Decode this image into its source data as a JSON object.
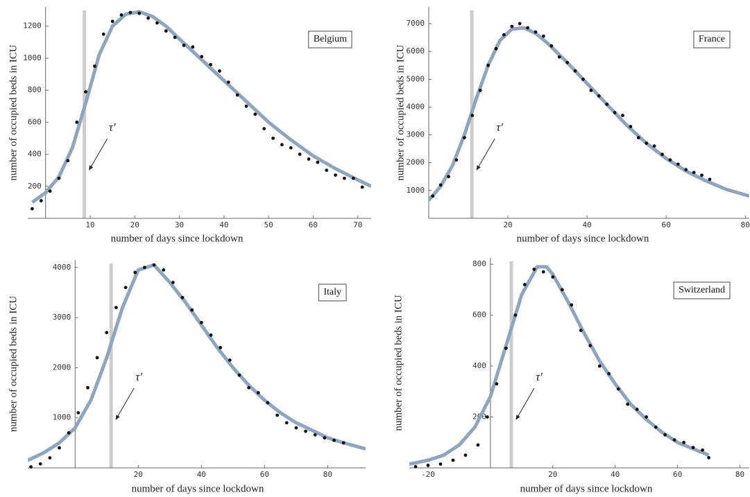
{
  "chart_data": [
    {
      "type": "scatter",
      "label": "Belgium",
      "annotation": "τ′",
      "xlabel": "number of days since lockdown",
      "ylabel": "number of occupied beds in ICU",
      "xlim": [
        -4,
        73
      ],
      "ylim": [
        0,
        1320
      ],
      "xticks": [
        10,
        20,
        30,
        40,
        50,
        60,
        70
      ],
      "yticks": [
        200,
        400,
        600,
        800,
        1000,
        1200
      ],
      "tau_x": 8.7,
      "tau_color": "#cccccc",
      "series": [
        {
          "type": "scatter",
          "color": "#111111",
          "x": [
            -3,
            -1,
            1,
            3,
            5,
            7,
            9,
            11,
            13,
            15,
            17,
            19,
            21,
            23,
            25,
            27,
            29,
            31,
            33,
            35,
            37,
            39,
            41,
            43,
            45,
            47,
            49,
            51,
            53,
            55,
            57,
            59,
            61,
            63,
            65,
            67,
            69,
            71
          ],
          "values": [
            60,
            110,
            170,
            250,
            360,
            600,
            790,
            950,
            1150,
            1230,
            1270,
            1285,
            1280,
            1250,
            1220,
            1170,
            1130,
            1080,
            1070,
            1010,
            960,
            920,
            850,
            770,
            700,
            650,
            560,
            500,
            460,
            440,
            400,
            370,
            350,
            300,
            270,
            250,
            250,
            195
          ]
        },
        {
          "type": "line",
          "color": "#8fa4bd",
          "x": [
            -3,
            0,
            3,
            6,
            9,
            12,
            15,
            18,
            21,
            24,
            27,
            30,
            35,
            40,
            45,
            50,
            55,
            60,
            65,
            70,
            73
          ],
          "values": [
            100,
            160,
            260,
            440,
            720,
            1020,
            1200,
            1275,
            1290,
            1260,
            1200,
            1120,
            990,
            860,
            730,
            600,
            490,
            390,
            310,
            240,
            200
          ]
        }
      ]
    },
    {
      "type": "scatter",
      "label": "France",
      "annotation": "τ′",
      "xlabel": "number of days since lockdown",
      "ylabel": "number of occupied beds in ICU",
      "xlim": [
        0,
        81
      ],
      "ylim": [
        0,
        7600
      ],
      "xticks": [
        20,
        40,
        60,
        80
      ],
      "yticks": [
        1000,
        2000,
        3000,
        4000,
        5000,
        6000,
        7000
      ],
      "tau_x": 10.9,
      "tau_color": "#cccccc",
      "series": [
        {
          "type": "scatter",
          "color": "#111111",
          "x": [
            1,
            3,
            5,
            7,
            9,
            11,
            13,
            15,
            17,
            19,
            21,
            23,
            25,
            27,
            29,
            31,
            33,
            35,
            37,
            39,
            41,
            43,
            45,
            47,
            49,
            51,
            53,
            55,
            57,
            59,
            61,
            63,
            65,
            67,
            69,
            71
          ],
          "values": [
            800,
            1200,
            1500,
            2100,
            2900,
            3700,
            4600,
            5500,
            6100,
            6600,
            6900,
            7000,
            6850,
            6700,
            6550,
            6200,
            5800,
            5600,
            5300,
            5000,
            4600,
            4400,
            4100,
            3800,
            3700,
            3300,
            2900,
            2700,
            2600,
            2300,
            2100,
            1950,
            1750,
            1650,
            1550,
            1400
          ]
        },
        {
          "type": "line",
          "color": "#8fa4bd",
          "x": [
            0,
            3,
            6,
            9,
            12,
            15,
            18,
            21,
            24,
            27,
            30,
            35,
            40,
            45,
            50,
            55,
            60,
            65,
            70,
            75,
            81
          ],
          "values": [
            650,
            1150,
            1900,
            3000,
            4300,
            5500,
            6400,
            6800,
            6850,
            6650,
            6300,
            5600,
            4850,
            4100,
            3350,
            2700,
            2150,
            1700,
            1350,
            1050,
            800
          ]
        }
      ]
    },
    {
      "type": "scatter",
      "label": "Italy",
      "annotation": "τ′",
      "xlabel": "number of days since lockdown",
      "ylabel": "number of occupied beds in ICU",
      "xlim": [
        -15,
        92
      ],
      "ylim": [
        0,
        4150
      ],
      "xticks": [
        20,
        40,
        60,
        80
      ],
      "yticks": [
        1000,
        2000,
        3000,
        4000
      ],
      "tau_x": 11.4,
      "tau_color": "#cccccc",
      "series": [
        {
          "type": "scatter",
          "color": "#111111",
          "x": [
            -14,
            -11,
            -8,
            -5,
            -2,
            1,
            4,
            7,
            10,
            13,
            16,
            19,
            22,
            25,
            28,
            31,
            34,
            37,
            40,
            43,
            46,
            49,
            52,
            55,
            58,
            61,
            64,
            67,
            70,
            73,
            76,
            79,
            82,
            85
          ],
          "values": [
            20,
            80,
            200,
            400,
            700,
            1100,
            1600,
            2200,
            2700,
            3200,
            3600,
            3900,
            4000,
            4050,
            3950,
            3700,
            3400,
            3150,
            2900,
            2650,
            2400,
            2150,
            1850,
            1600,
            1500,
            1300,
            1050,
            900,
            800,
            730,
            660,
            600,
            550,
            500
          ]
        },
        {
          "type": "line",
          "color": "#8fa4bd",
          "x": [
            -15,
            -10,
            -5,
            0,
            5,
            10,
            15,
            20,
            25,
            30,
            35,
            40,
            45,
            50,
            55,
            60,
            65,
            70,
            75,
            80,
            85,
            92
          ],
          "values": [
            150,
            300,
            500,
            800,
            1350,
            2200,
            3200,
            3950,
            4050,
            3700,
            3300,
            2850,
            2400,
            2000,
            1650,
            1350,
            1100,
            900,
            750,
            600,
            500,
            380
          ]
        }
      ]
    },
    {
      "type": "scatter",
      "label": "Switzerland",
      "annotation": "τ′",
      "xlabel": "number of days since lockdown",
      "ylabel": "number of occupied beds in ICU",
      "xlim": [
        -26,
        83
      ],
      "ylim": [
        0,
        825
      ],
      "xticks": [
        -20,
        20,
        40,
        60,
        80
      ],
      "yticks": [
        200,
        400,
        600,
        800
      ],
      "tau_x": 6.7,
      "tau_color": "#cccccc",
      "series": [
        {
          "type": "scatter",
          "color": "#111111",
          "x": [
            -24,
            -20,
            -16,
            -12,
            -8,
            -4,
            -1,
            2,
            5,
            8,
            11,
            14,
            17,
            20,
            23,
            26,
            29,
            32,
            35,
            38,
            41,
            44,
            47,
            50,
            53,
            56,
            59,
            62,
            65,
            68,
            70
          ],
          "values": [
            5,
            10,
            15,
            30,
            50,
            90,
            200,
            330,
            470,
            600,
            720,
            780,
            770,
            750,
            700,
            640,
            540,
            480,
            400,
            370,
            310,
            250,
            230,
            200,
            160,
            130,
            110,
            100,
            80,
            70,
            40
          ]
        },
        {
          "type": "line",
          "color": "#8fa4bd",
          "x": [
            -26,
            -20,
            -15,
            -10,
            -5,
            0,
            5,
            10,
            15,
            18,
            20,
            25,
            30,
            35,
            40,
            45,
            50,
            55,
            60,
            65,
            70
          ],
          "values": [
            15,
            30,
            50,
            90,
            160,
            280,
            480,
            680,
            790,
            790,
            760,
            650,
            530,
            420,
            330,
            250,
            190,
            140,
            100,
            75,
            50
          ]
        }
      ]
    }
  ]
}
